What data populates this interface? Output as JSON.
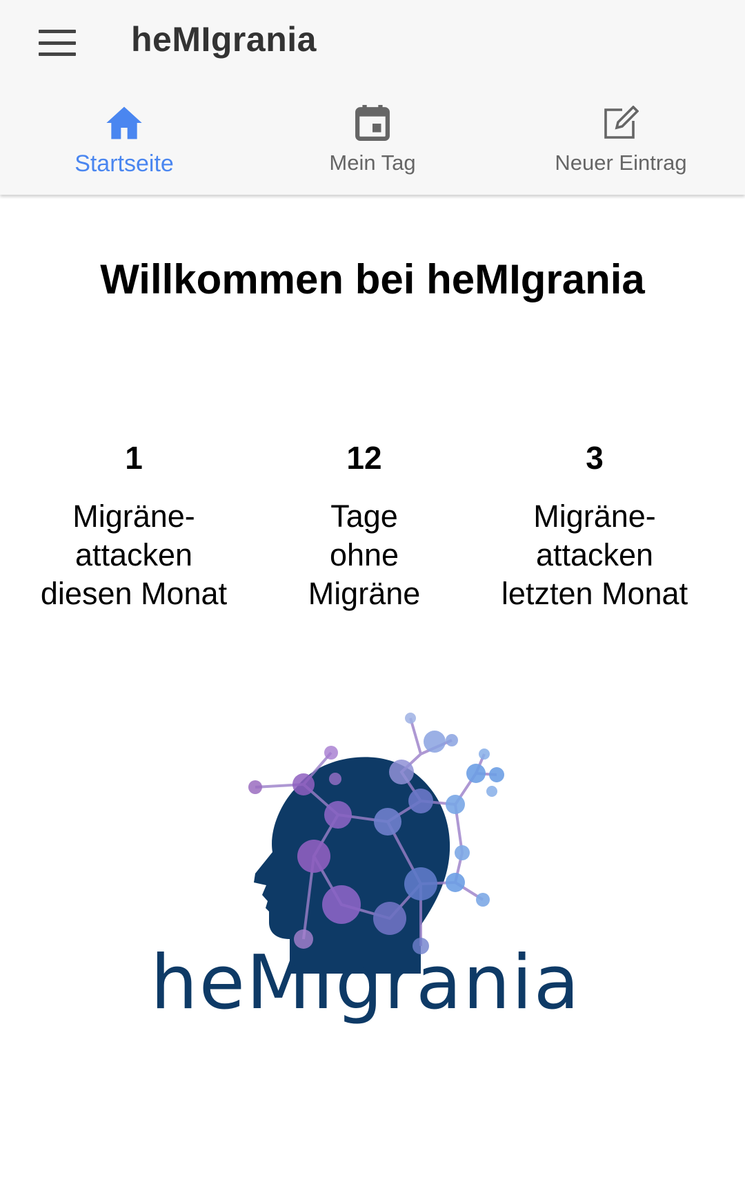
{
  "header": {
    "menu_icon": "hamburger-menu-icon",
    "title": "heMIgrania"
  },
  "tabs": [
    {
      "label": "Startseite",
      "icon": "home-icon",
      "active": true,
      "color": "#4a86f0"
    },
    {
      "label": "Mein Tag",
      "icon": "calendar-icon",
      "active": false,
      "color": "#666666"
    },
    {
      "label": "Neuer Eintrag",
      "icon": "edit-icon",
      "active": false,
      "color": "#666666"
    }
  ],
  "main": {
    "welcome": "Willkommen bei heMIgrania",
    "stats": [
      {
        "value": "1",
        "line1": "Migräne-",
        "line2": "attacken",
        "line3": "diesen Monat"
      },
      {
        "value": "12",
        "line1": "Tage",
        "line2": "ohne",
        "line3": "Migräne"
      },
      {
        "value": "3",
        "line1": "Migräne-",
        "line2": "attacken",
        "line3": "letzten Monat"
      }
    ],
    "logo_text": "heMIgrania"
  },
  "colors": {
    "accent": "#4a86f0",
    "logo_dark": "#0e3a66",
    "node_purple": "#8e62b8",
    "node_blue": "#6f9fe0"
  }
}
